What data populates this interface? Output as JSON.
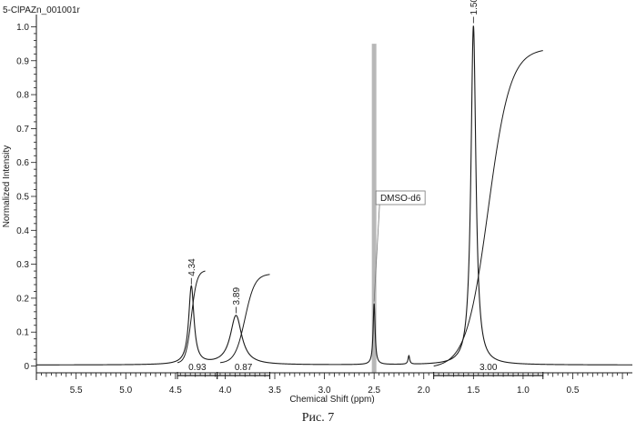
{
  "chart_data": {
    "type": "line",
    "title": "5-ClPAZn_001001r",
    "xlabel": "Chemical Shift (ppm)",
    "ylabel": "Normalized Intensity",
    "xlim": [
      5.9,
      -0.1
    ],
    "ylim": [
      -0.02,
      1.02
    ],
    "x_reversed": true,
    "x_ticks": [
      "5.5",
      "5.0",
      "4.5",
      "4.0",
      "3.5",
      "3.0",
      "2.5",
      "2.0",
      "1.5",
      "1.0",
      "0.5"
    ],
    "x_tick_values": [
      5.5,
      5.0,
      4.5,
      4.0,
      3.5,
      3.0,
      2.5,
      2.0,
      1.5,
      1.0,
      0.5
    ],
    "y_ticks": [
      "0",
      "0.1",
      "0.2",
      "0.3",
      "0.4",
      "0.5",
      "0.6",
      "0.7",
      "0.8",
      "0.9",
      "1.0"
    ],
    "y_tick_values": [
      0,
      0.1,
      0.2,
      0.3,
      0.4,
      0.5,
      0.6,
      0.7,
      0.8,
      0.9,
      1.0
    ],
    "peaks": [
      {
        "label": "4.34",
        "ppm": 4.34,
        "intensity": 0.23,
        "width": 0.032
      },
      {
        "label": "3.89",
        "ppm": 3.89,
        "intensity": 0.145,
        "width": 0.07
      },
      {
        "label": "",
        "ppm": 2.5,
        "intensity": 0.18,
        "width": 0.012
      },
      {
        "label": "",
        "ppm": 2.15,
        "intensity": 0.025,
        "width": 0.01
      },
      {
        "label": "1.50",
        "ppm": 1.5,
        "intensity": 1.0,
        "width": 0.03
      }
    ],
    "solvent_annotation": {
      "text": "DMSO-d6",
      "ppm": 2.5
    },
    "integrals": [
      {
        "label": "0.93",
        "from": 4.48,
        "to": 4.08,
        "curve_from": 4.48,
        "curve_to": 4.2,
        "curve_start": 0.01,
        "curve_end": 0.28
      },
      {
        "label": "0.87",
        "from": 4.08,
        "to": 3.55,
        "curve_from": 4.05,
        "curve_to": 3.55,
        "curve_start": 0.01,
        "curve_end": 0.27
      },
      {
        "label": "3.00",
        "from": 1.9,
        "to": 0.8,
        "curve_from": 1.9,
        "curve_to": 0.8,
        "curve_start": 0.0,
        "curve_end": 0.93
      }
    ],
    "grid": false,
    "legend": "none"
  },
  "caption": "Рис. 7",
  "colors": {
    "line": "#1a1a1a",
    "solvent_band": "#b8b8b8"
  }
}
